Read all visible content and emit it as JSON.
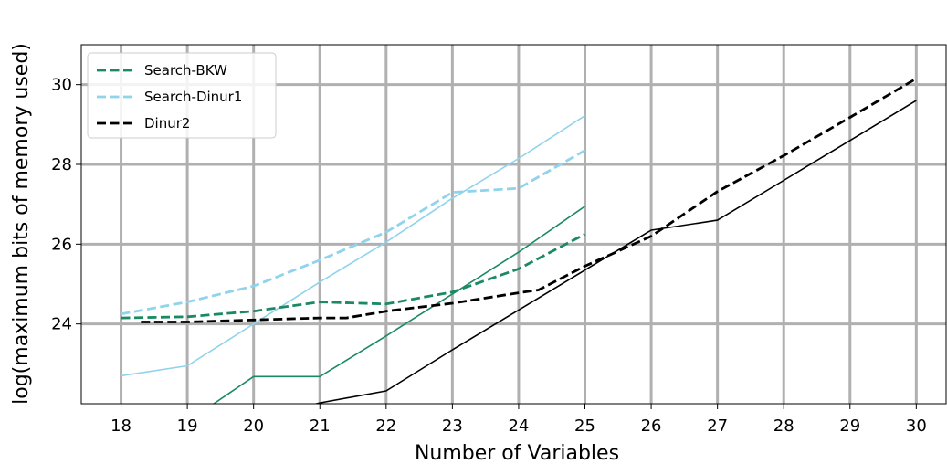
{
  "chart_data": {
    "type": "line",
    "title": "",
    "xlabel": "Number of Variables",
    "ylabel": "log(maximum bits of memory used)",
    "xlim": [
      17.4,
      30.45
    ],
    "ylim": [
      22,
      31
    ],
    "xticks": [
      18,
      19,
      20,
      21,
      22,
      23,
      24,
      25,
      26,
      27,
      28,
      29,
      30
    ],
    "yticks": [
      24,
      26,
      28,
      30
    ],
    "grid": true,
    "legend_position": "top-left",
    "series": [
      {
        "name": "Search-BKW",
        "color": "#1a8a62",
        "style": "dashed",
        "x": [
          18,
          19,
          20,
          21,
          22,
          23,
          24,
          25
        ],
        "y": [
          24.15,
          24.18,
          24.32,
          24.55,
          24.5,
          24.8,
          25.38,
          26.25
        ]
      },
      {
        "name": "Search-Dinur1",
        "color": "#8fd3ec",
        "style": "dashed",
        "x": [
          18,
          19,
          20,
          21,
          22,
          23,
          24,
          25
        ],
        "y": [
          24.25,
          24.55,
          24.95,
          25.6,
          26.3,
          27.3,
          27.4,
          28.35
        ]
      },
      {
        "name": "Dinur2",
        "color": "#000000",
        "style": "dashed",
        "x": [
          18.3,
          19,
          20,
          21,
          21.4,
          22,
          23,
          24,
          24.3,
          25,
          26,
          27,
          28,
          29,
          30
        ],
        "y": [
          24.05,
          24.05,
          24.1,
          24.15,
          24.15,
          24.32,
          24.52,
          24.78,
          24.85,
          25.45,
          26.2,
          27.32,
          28.22,
          29.18,
          30.15
        ]
      },
      {
        "color": "#1a8a62",
        "style": "solid",
        "x": [
          18,
          19,
          19.4,
          20,
          21,
          22,
          23,
          24,
          25
        ],
        "y": [
          20.6,
          21.4,
          22,
          22.68,
          22.68,
          23.7,
          24.75,
          25.8,
          26.95
        ]
      },
      {
        "color": "#8fd3ec",
        "style": "solid",
        "x": [
          18,
          19,
          20,
          21,
          22,
          23,
          24,
          25
        ],
        "y": [
          22.7,
          22.95,
          24.0,
          25.05,
          26.05,
          27.15,
          28.15,
          29.22
        ]
      },
      {
        "color": "#000000",
        "style": "solid",
        "x": [
          20,
          21,
          22,
          23,
          24,
          25,
          26,
          27,
          28,
          29,
          30
        ],
        "y": [
          21.6,
          22.02,
          22.32,
          23.35,
          24.35,
          25.35,
          26.35,
          26.6,
          27.6,
          28.6,
          29.6
        ]
      }
    ]
  }
}
